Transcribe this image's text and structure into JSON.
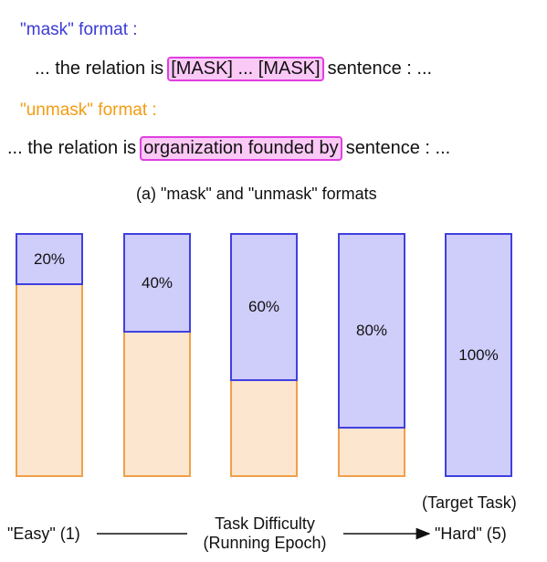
{
  "mask_format_label": "\"mask\" format :",
  "mask_line": {
    "prefix": "... the relation is",
    "highlight": "[MASK] ... [MASK]",
    "suffix": "sentence : ..."
  },
  "unmask_format_label": "\"unmask\" format :",
  "unmask_line": {
    "prefix": "... the relation is",
    "highlight": "organization founded by",
    "suffix": "sentence : ..."
  },
  "caption": "(a) \"mask\" and \"unmask\" formats",
  "bars": [
    {
      "label": "20%",
      "masked_fraction": 0.2
    },
    {
      "label": "40%",
      "masked_fraction": 0.4
    },
    {
      "label": "60%",
      "masked_fraction": 0.6
    },
    {
      "label": "80%",
      "masked_fraction": 0.8
    },
    {
      "label": "100%",
      "masked_fraction": 1.0
    }
  ],
  "target_task": "(Target Task)",
  "easy_label": "\"Easy\" (1)",
  "axis_title_line1": "Task Difficulty",
  "axis_title_line2": "(Running Epoch)",
  "hard_label": "\"Hard\" (5)",
  "colors": {
    "mask": "#3a3ad6",
    "unmask": "#f39c12",
    "highlight_border": "#e040e0"
  }
}
